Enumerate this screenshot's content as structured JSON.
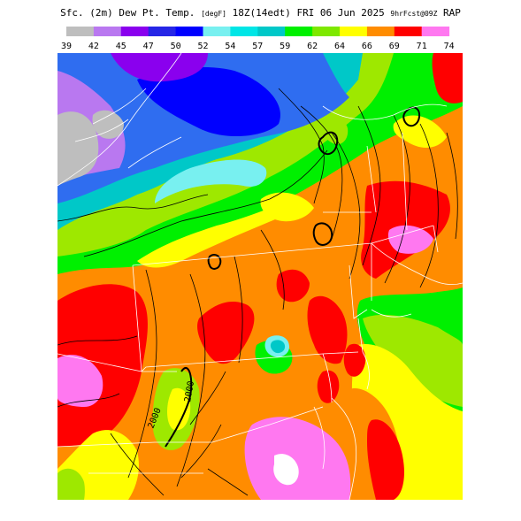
{
  "title": {
    "field": "Sfc. (2m) Dew Pt. Temp.",
    "units": "[degF]",
    "valid": "18Z(14edt) FRI 06 Jun 2025",
    "forecast": "9hrFcst@09Z",
    "model": "RAP"
  },
  "legend": {
    "labels": [
      "39",
      "42",
      "45",
      "47",
      "50",
      "52",
      "54",
      "57",
      "59",
      "62",
      "64",
      "66",
      "69",
      "71",
      "74"
    ],
    "colors": [
      "#bebebe",
      "#b978f0",
      "#8a00ee",
      "#2626e6",
      "#0000ff",
      "#78f0f0",
      "#00e6e6",
      "#00c8c8",
      "#00f000",
      "#7ee800",
      "#ffff00",
      "#ff8c00",
      "#ff0000",
      "#ff78f0"
    ]
  },
  "map": {
    "contour_label": "2000",
    "colors": {
      "gray": "#bebebe",
      "lavender": "#b978f0",
      "purple": "#8a00ee",
      "blue": "#0000ff",
      "steelblue": "#2f6df0",
      "cyan": "#78f0f0",
      "teal": "#00c8c8",
      "green": "#00f000",
      "lime": "#9ee800",
      "yellow": "#ffff00",
      "orange": "#ff8c00",
      "red": "#ff0000",
      "pink": "#ff78f0",
      "white": "#ffffff"
    }
  }
}
